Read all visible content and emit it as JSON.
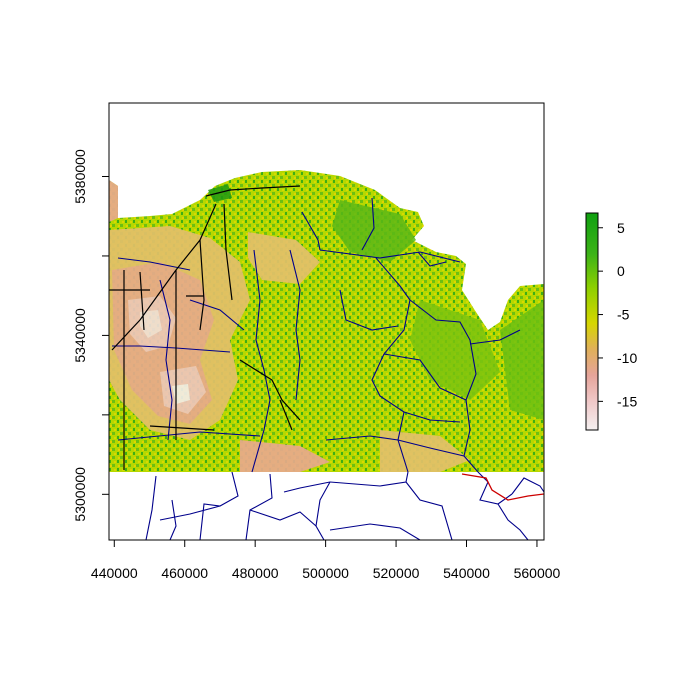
{
  "map": {
    "x_axis": {
      "ticks": [
        440000,
        460000,
        480000,
        500000,
        520000,
        540000,
        560000
      ],
      "tick_labels": [
        "440000",
        "460000",
        "480000",
        "500000",
        "520000",
        "540000",
        "560000"
      ],
      "range": [
        438500,
        562000
      ]
    },
    "y_axis": {
      "ticks": [
        5300000,
        5320000,
        5340000,
        5360000,
        5380000
      ],
      "labeled_ticks": [
        5300000,
        5340000,
        5380000
      ],
      "tick_labels": [
        "5300000",
        "5340000",
        "5380000"
      ],
      "range": [
        5288500,
        5398500
      ]
    },
    "legend": {
      "placement": "right",
      "ticks": [
        5,
        0,
        -5,
        -10,
        -15
      ],
      "tick_labels": [
        "5",
        "0",
        "-5",
        "-10",
        "-15"
      ],
      "range": [
        -18.3,
        6.7
      ],
      "color_stops": [
        {
          "value": 6.7,
          "color": "#0fa010"
        },
        {
          "value": 2.0,
          "color": "#3cb318"
        },
        {
          "value": -2.0,
          "color": "#8fd000"
        },
        {
          "value": -6.0,
          "color": "#d6d600"
        },
        {
          "value": -9.0,
          "color": "#e0b05a"
        },
        {
          "value": -12.0,
          "color": "#e5a49a"
        },
        {
          "value": -15.0,
          "color": "#f0c8c8"
        },
        {
          "value": -18.3,
          "color": "#f4f0f0"
        }
      ]
    },
    "colors": {
      "road_network": "#00008b",
      "major_road": "#000000",
      "boundary": "#cc0000",
      "frame": "#000000"
    }
  }
}
